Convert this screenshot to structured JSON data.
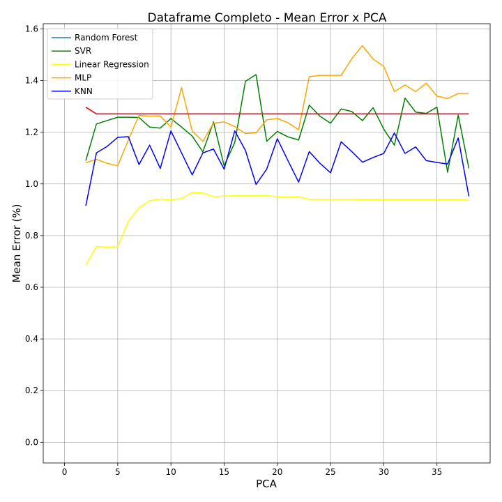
{
  "chart_data": {
    "type": "line",
    "title": "Dataframe Completo - Mean Error x PCA",
    "xlabel": "PCA",
    "ylabel": "Mean Error (%)",
    "xlim": [
      -2,
      40
    ],
    "ylim": [
      -0.08,
      1.62
    ],
    "xticks": [
      0,
      5,
      10,
      15,
      20,
      25,
      30,
      35
    ],
    "yticks": [
      0.0,
      0.2,
      0.4,
      0.6,
      0.8,
      1.0,
      1.2,
      1.4,
      1.6
    ],
    "grid": true,
    "legend_position": "top-left",
    "x": [
      2,
      3,
      4,
      5,
      6,
      7,
      8,
      9,
      10,
      11,
      12,
      13,
      14,
      15,
      16,
      17,
      18,
      19,
      20,
      21,
      22,
      23,
      24,
      25,
      26,
      27,
      28,
      29,
      30,
      31,
      32,
      33,
      34,
      35,
      36,
      37,
      38
    ],
    "series": [
      {
        "name": "Random Forest",
        "color": "#1f77b4",
        "values": [
          1.297,
          1.271,
          1.271,
          1.271,
          1.271,
          1.271,
          1.271,
          1.271,
          1.271,
          1.271,
          1.271,
          1.271,
          1.271,
          1.271,
          1.271,
          1.271,
          1.271,
          1.271,
          1.271,
          1.271,
          1.271,
          1.271,
          1.271,
          1.271,
          1.271,
          1.271,
          1.271,
          1.271,
          1.271,
          1.271,
          1.271,
          1.271,
          1.271,
          1.271,
          1.271,
          1.271,
          1.271
        ]
      },
      {
        "name": "SVR",
        "color": "#008000",
        "values": [
          1.09,
          1.232,
          1.245,
          1.258,
          1.258,
          1.257,
          1.22,
          1.216,
          1.253,
          1.22,
          1.185,
          1.124,
          1.24,
          1.07,
          1.16,
          1.397,
          1.423,
          1.165,
          1.203,
          1.182,
          1.17,
          1.305,
          1.262,
          1.235,
          1.29,
          1.28,
          1.245,
          1.295,
          1.212,
          1.15,
          1.332,
          1.278,
          1.273,
          1.297,
          1.045,
          1.266,
          1.06
        ]
      },
      {
        "name": "Linear Regression",
        "color": "#ffff00",
        "values": [
          0.685,
          0.758,
          0.755,
          0.757,
          0.855,
          0.907,
          0.935,
          0.941,
          0.938,
          0.943,
          0.967,
          0.965,
          0.95,
          0.953,
          0.954,
          0.954,
          0.954,
          0.955,
          0.95,
          0.95,
          0.95,
          0.94,
          0.94,
          0.94,
          0.94,
          0.94,
          0.939,
          0.939,
          0.939,
          0.939,
          0.939,
          0.939,
          0.939,
          0.939,
          0.939,
          0.939,
          0.937
        ]
      },
      {
        "name": "MLP",
        "color": "#ffa500",
        "values": [
          1.082,
          1.095,
          1.08,
          1.07,
          1.17,
          1.265,
          1.262,
          1.263,
          1.22,
          1.373,
          1.205,
          1.165,
          1.235,
          1.24,
          1.222,
          1.195,
          1.198,
          1.248,
          1.253,
          1.237,
          1.21,
          1.415,
          1.42,
          1.42,
          1.42,
          1.485,
          1.535,
          1.483,
          1.455,
          1.357,
          1.383,
          1.357,
          1.39,
          1.34,
          1.33,
          1.35,
          1.351
        ]
      },
      {
        "name": "KNN",
        "color": "#0000ff",
        "values": [
          0.915,
          1.12,
          1.145,
          1.18,
          1.183,
          1.075,
          1.15,
          1.06,
          1.205,
          1.12,
          1.035,
          1.12,
          1.135,
          1.057,
          1.205,
          1.13,
          0.998,
          1.057,
          1.175,
          1.09,
          1.007,
          1.125,
          1.08,
          1.043,
          1.163,
          1.125,
          1.084,
          1.102,
          1.118,
          1.197,
          1.118,
          1.143,
          1.09,
          1.083,
          1.077,
          1.178,
          0.952
        ]
      }
    ],
    "extra_lines": [
      {
        "color": "#ff0000",
        "values": [
          1.297,
          1.271,
          1.271,
          1.271,
          1.271,
          1.271,
          1.271,
          1.271,
          1.271,
          1.271,
          1.271,
          1.271,
          1.271,
          1.271,
          1.271,
          1.271,
          1.271,
          1.271,
          1.271,
          1.271,
          1.271,
          1.271,
          1.271,
          1.271,
          1.271,
          1.271,
          1.271,
          1.271,
          1.271,
          1.271,
          1.271,
          1.271,
          1.271,
          1.271,
          1.271,
          1.271,
          1.271
        ]
      }
    ]
  }
}
